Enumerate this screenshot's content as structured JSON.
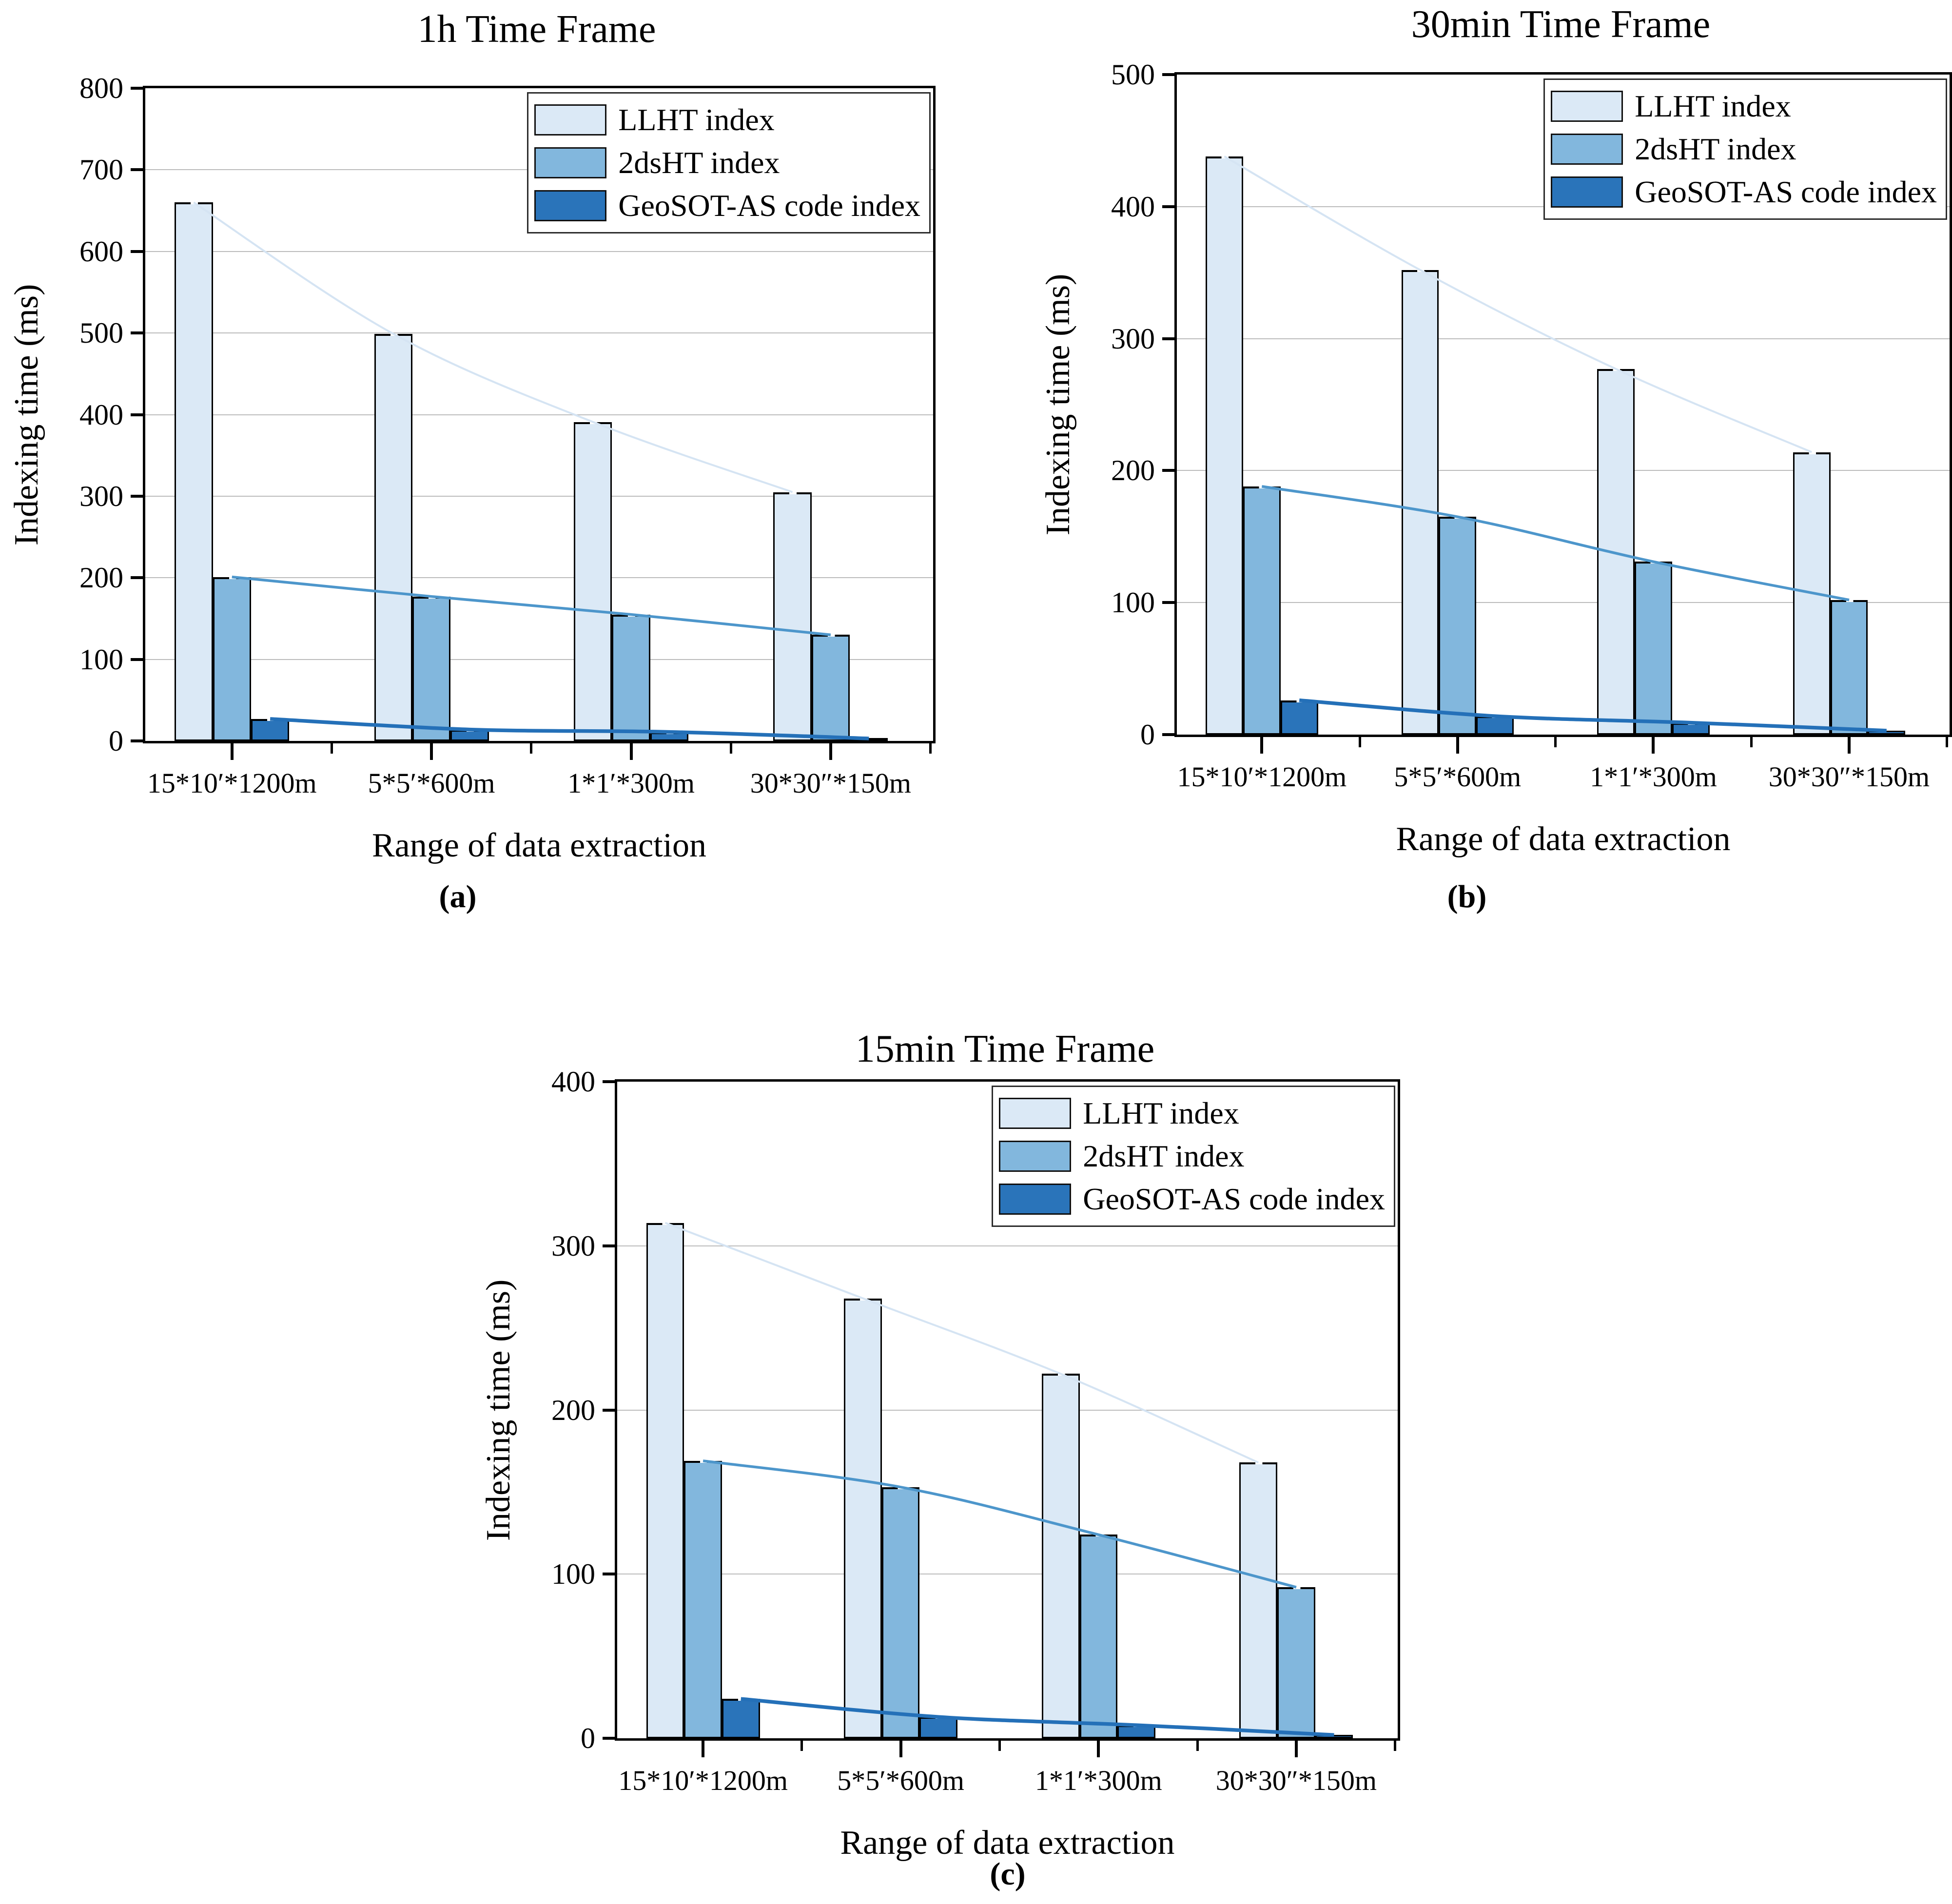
{
  "figure": {
    "panel_labels": [
      "(a)",
      "(b)",
      "(c)"
    ],
    "background": "#ffffff",
    "axis_color": "#000000",
    "grid_color": "#bcbcbc"
  },
  "chart_data": [
    {
      "type": "bar",
      "title": "1h Time Frame",
      "xlabel": "Range of data extraction",
      "ylabel": "Indexing time (ms)",
      "ylim": [
        0,
        800
      ],
      "ytick_step": 100,
      "grid": true,
      "legend_position": "top-right",
      "categories": [
        "15*10′*1200m",
        "5*5′*600m",
        "1*1′*300m",
        "30*30″*150m"
      ],
      "series": [
        {
          "name": "LLHT index",
          "bar_color": "#dbe9f6",
          "line_color": "#d5e4f3",
          "values": [
            660,
            499,
            391,
            305
          ]
        },
        {
          "name": "2dsHT index",
          "bar_color": "#82b7dd",
          "line_color": "#4d96cb",
          "values": [
            201,
            177,
            155,
            130
          ]
        },
        {
          "name": "GeoSOT-AS code index",
          "bar_color": "#2a74ba",
          "line_color": "#2470b8",
          "values": [
            27,
            14,
            11,
            3
          ]
        }
      ]
    },
    {
      "type": "bar",
      "title": "30min Time Frame",
      "xlabel": "Range of data extraction",
      "ylabel": "Indexing time (ms)",
      "ylim": [
        0,
        500
      ],
      "ytick_step": 100,
      "grid": true,
      "legend_position": "top-right",
      "categories": [
        "15*10′*1200m",
        "5*5′*600m",
        "1*1′*300m",
        "30*30″*150m"
      ],
      "series": [
        {
          "name": "LLHT index",
          "bar_color": "#dbe9f6",
          "line_color": "#d5e4f3",
          "values": [
            438,
            352,
            277,
            214
          ]
        },
        {
          "name": "2dsHT index",
          "bar_color": "#82b7dd",
          "line_color": "#4d96cb",
          "values": [
            188,
            165,
            131,
            102
          ]
        },
        {
          "name": "GeoSOT-AS code index",
          "bar_color": "#2a74ba",
          "line_color": "#2470b8",
          "values": [
            26,
            14,
            9,
            3
          ]
        }
      ]
    },
    {
      "type": "bar",
      "title": "15min Time Frame",
      "xlabel": "Range of data extraction",
      "ylabel": "Indexing time (ms)",
      "ylim": [
        0,
        400
      ],
      "ytick_step": 100,
      "grid": true,
      "legend_position": "top-right",
      "categories": [
        "15*10′*1200m",
        "5*5′*600m",
        "1*1′*300m",
        "30*30″*150m"
      ],
      "series": [
        {
          "name": "LLHT index",
          "bar_color": "#dbe9f6",
          "line_color": "#d5e4f3",
          "values": [
            314,
            268,
            222,
            168
          ]
        },
        {
          "name": "2dsHT index",
          "bar_color": "#82b7dd",
          "line_color": "#4d96cb",
          "values": [
            169,
            153,
            124,
            92
          ]
        },
        {
          "name": "GeoSOT-AS code index",
          "bar_color": "#2a74ba",
          "line_color": "#2470b8",
          "values": [
            24,
            13,
            8,
            2
          ]
        }
      ]
    }
  ]
}
